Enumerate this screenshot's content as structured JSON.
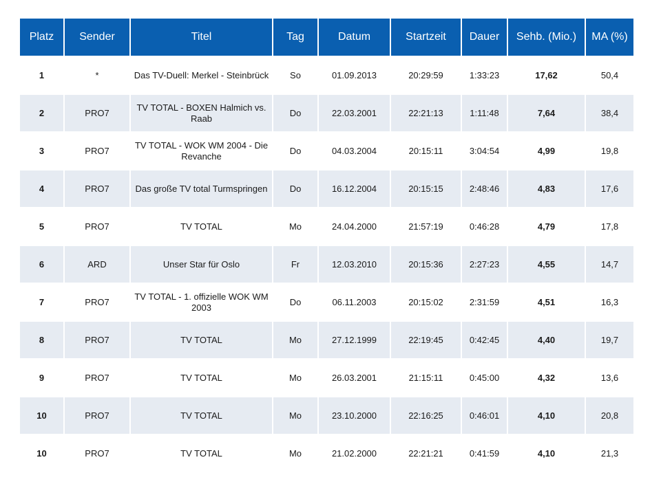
{
  "table": {
    "headers": [
      "Platz",
      "Sender",
      "Titel",
      "Tag",
      "Datum",
      "Startzeit",
      "Dauer",
      "Sehb. (Mio.)",
      "MA (%)"
    ],
    "rows": [
      [
        "1",
        "*",
        "Das TV-Duell: Merkel - Steinbrück",
        "So",
        "01.09.2013",
        "20:29:59",
        "1:33:23",
        "17,62",
        "50,4"
      ],
      [
        "2",
        "PRO7",
        "TV TOTAL - BOXEN Halmich vs. Raab",
        "Do",
        "22.03.2001",
        "22:21:13",
        "1:11:48",
        "7,64",
        "38,4"
      ],
      [
        "3",
        "PRO7",
        "TV TOTAL - WOK WM 2004 - Die Revanche",
        "Do",
        "04.03.2004",
        "20:15:11",
        "3:04:54",
        "4,99",
        "19,8"
      ],
      [
        "4",
        "PRO7",
        "Das große TV total Turmspringen",
        "Do",
        "16.12.2004",
        "20:15:15",
        "2:48:46",
        "4,83",
        "17,6"
      ],
      [
        "5",
        "PRO7",
        "TV TOTAL",
        "Mo",
        "24.04.2000",
        "21:57:19",
        "0:46:28",
        "4,79",
        "17,8"
      ],
      [
        "6",
        "ARD",
        "Unser Star für Oslo",
        "Fr",
        "12.03.2010",
        "20:15:36",
        "2:27:23",
        "4,55",
        "14,7"
      ],
      [
        "7",
        "PRO7",
        "TV TOTAL - 1. offizielle WOK WM 2003",
        "Do",
        "06.11.2003",
        "20:15:02",
        "2:31:59",
        "4,51",
        "16,3"
      ],
      [
        "8",
        "PRO7",
        "TV TOTAL",
        "Mo",
        "27.12.1999",
        "22:19:45",
        "0:42:45",
        "4,40",
        "19,7"
      ],
      [
        "9",
        "PRO7",
        "TV TOTAL",
        "Mo",
        "26.03.2001",
        "21:15:11",
        "0:45:00",
        "4,32",
        "13,6"
      ],
      [
        "10",
        "PRO7",
        "TV TOTAL",
        "Mo",
        "23.10.2000",
        "22:16:25",
        "0:46:01",
        "4,10",
        "20,8"
      ],
      [
        "10",
        "PRO7",
        "TV TOTAL",
        "Mo",
        "21.02.2000",
        "22:21:21",
        "0:41:59",
        "4,10",
        "21,3"
      ]
    ]
  },
  "colors": {
    "header_bg": "#0a5fb0",
    "header_text": "#ffffff",
    "row_alt_bg": "#e6ebf2"
  }
}
